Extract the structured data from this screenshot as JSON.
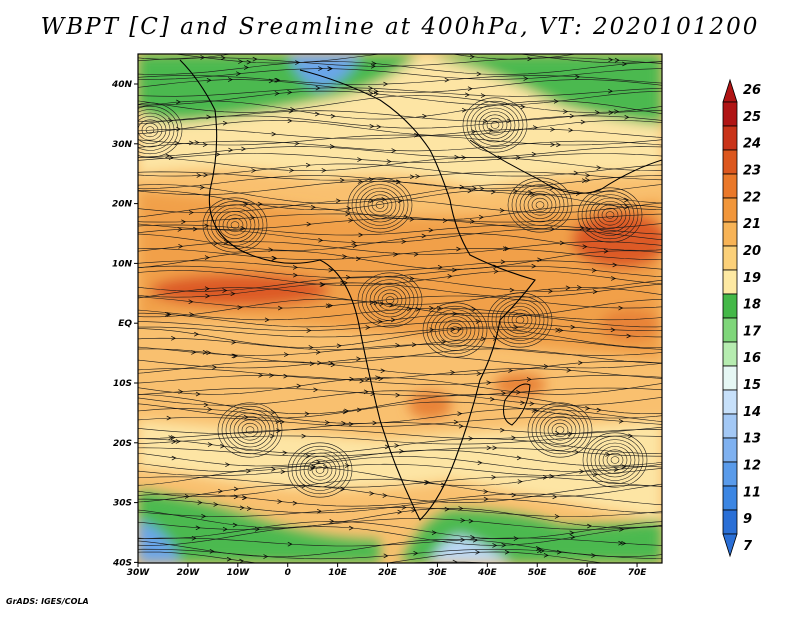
{
  "title": "WBPT [C] and Sreamline at 400hPa, VT: 2020101200",
  "credit": "GrADS: IGES/COLA",
  "map": {
    "x_labels": [
      "30W",
      "20W",
      "10W",
      "0",
      "10E",
      "20E",
      "30E",
      "40E",
      "50E",
      "60E",
      "70E"
    ],
    "y_labels": [
      "40N",
      "30N",
      "20N",
      "10N",
      "EQ",
      "10S",
      "20S",
      "30S",
      "40S"
    ]
  },
  "colorbar": {
    "labels": [
      "7",
      "9",
      "11",
      "12",
      "13",
      "14",
      "15",
      "16",
      "17",
      "18",
      "19",
      "20",
      "21",
      "22",
      "23",
      "24",
      "25",
      "26"
    ],
    "colors": [
      "#2a6fd6",
      "#3c86e3",
      "#5a9bea",
      "#7fb1f0",
      "#a3c8f5",
      "#c7e0fa",
      "#e6f7f4",
      "#b6ecb0",
      "#7fd67a",
      "#44b848",
      "#fde9a3",
      "#fbd079",
      "#f7b356",
      "#f1963a",
      "#ea7829",
      "#dc571e",
      "#c93319",
      "#b01414"
    ]
  },
  "field_colors": {
    "ocean_green": "#4cb94f",
    "light_green": "#a6e3a0",
    "pale_yellow": "#fde5a4",
    "light_orange": "#f9c06f",
    "orange": "#f1a04a",
    "dark_orange": "#e88338",
    "red_orange": "#dd5a25",
    "blue": "#6aa6ea",
    "pale_blue": "#bcd8f6"
  }
}
